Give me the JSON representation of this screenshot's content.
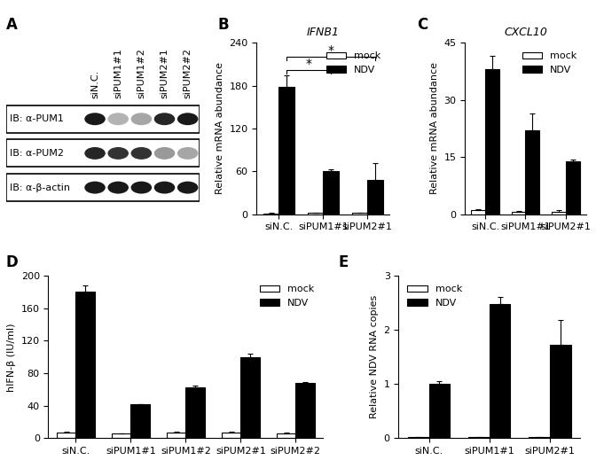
{
  "blot": {
    "annotations": [
      "A"
    ],
    "lanes": [
      "siN.C.",
      "siPUM1#1",
      "siPUM1#2",
      "siPUM2#1",
      "siPUM2#2"
    ],
    "rows": [
      {
        "label": "IB: α-PUM1",
        "intensities": [
          0.9,
          0.3,
          0.35,
          0.85,
          0.9
        ]
      },
      {
        "label": "IB: α-PUM2",
        "intensities": [
          0.85,
          0.8,
          0.8,
          0.4,
          0.35
        ]
      },
      {
        "label": "IB: α-β-actin",
        "intensities": [
          0.9,
          0.9,
          0.9,
          0.9,
          0.9
        ]
      }
    ]
  },
  "chart_data": [
    {
      "type": "bar",
      "title": "IFNB1",
      "y_label": "Relative mRNA abundance",
      "annotations": [
        "B",
        {
          "text": "*",
          "from": 0,
          "to": 1
        },
        {
          "text": "*",
          "from": 0,
          "to": 2
        }
      ],
      "categories": [
        "siN.C.",
        "siPUM1#1",
        "siPUM2#1"
      ],
      "series": [
        {
          "name": "mock",
          "color": "#ffffff",
          "values": [
            1,
            1.5,
            1.5
          ],
          "errors": [
            0.5,
            0.3,
            0.3
          ]
        },
        {
          "name": "NDV",
          "color": "#000000",
          "values": [
            178,
            60,
            48
          ],
          "errors": [
            16,
            3,
            24
          ]
        }
      ],
      "ylim": [
        0,
        240
      ],
      "yticks": [
        0,
        60,
        120,
        180,
        240
      ],
      "legend": "upper right"
    },
    {
      "type": "bar",
      "title": "CXCL10",
      "y_label": "Relative mRNA abundance",
      "annotations": [
        "C"
      ],
      "categories": [
        "siN.C.",
        "siPUM1#1",
        "siPUM2#1"
      ],
      "series": [
        {
          "name": "mock",
          "color": "#ffffff",
          "values": [
            1,
            0.6,
            0.6
          ],
          "errors": [
            0.4,
            0.2,
            0.4
          ]
        },
        {
          "name": "NDV",
          "color": "#000000",
          "values": [
            38,
            22,
            14
          ],
          "errors": [
            3.5,
            4.5,
            0.4
          ]
        }
      ],
      "ylim": [
        0,
        45
      ],
      "yticks": [
        0,
        15,
        30,
        45
      ],
      "legend": "upper right"
    },
    {
      "type": "bar",
      "y_label": "hIFN-β (IU/ml)",
      "annotations": [
        "D"
      ],
      "categories": [
        "siN.C.",
        "siPUM1#1",
        "siPUM1#2",
        "siPUM2#1",
        "siPUM2#2"
      ],
      "series": [
        {
          "name": "mock",
          "color": "#ffffff",
          "values": [
            7,
            5,
            7,
            7,
            6
          ],
          "errors": [
            0.5,
            0.5,
            0.5,
            0.5,
            0.5
          ]
        },
        {
          "name": "NDV",
          "color": "#000000",
          "values": [
            181,
            42,
            62,
            100,
            68
          ],
          "errors": [
            8,
            0,
            3,
            4,
            1
          ]
        }
      ],
      "ylim": [
        0,
        200
      ],
      "yticks": [
        0,
        40,
        80,
        120,
        160,
        200
      ],
      "legend": "upper right"
    },
    {
      "type": "bar",
      "y_label": "Relative NDV RNA copies",
      "annotations": [
        "E"
      ],
      "categories": [
        "siN.C.",
        "siPUM1#1",
        "siPUM2#1"
      ],
      "series": [
        {
          "name": "mock",
          "color": "#ffffff",
          "values": [
            0.01,
            0.01,
            0.01
          ],
          "errors": [
            0,
            0,
            0
          ]
        },
        {
          "name": "NDV",
          "color": "#000000",
          "values": [
            1.0,
            2.48,
            1.72
          ],
          "errors": [
            0.06,
            0.14,
            0.47
          ]
        }
      ],
      "ylim": [
        0,
        3
      ],
      "yticks": [
        0,
        1,
        2,
        3
      ],
      "legend": "upper left"
    }
  ]
}
